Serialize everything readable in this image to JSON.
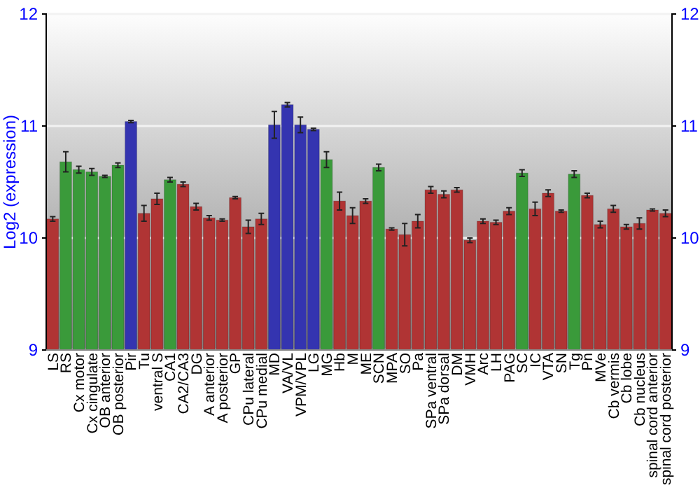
{
  "chart_data": {
    "type": "bar",
    "ylabel": "Log2 (expression)",
    "categories": [
      "LS",
      "RS",
      "Cx motor",
      "Cx cingulate",
      "OB anterior",
      "OB posterior",
      "Pir",
      "Tu",
      "ventral S",
      "CA1",
      "CA2/CA3",
      "DG",
      "A anterior",
      "A posterior",
      "GP",
      "CPu lateral",
      "CPu medial",
      "MD",
      "VA/VL",
      "VPM/VPL",
      "LG",
      "MG",
      "Hb",
      "M",
      "ME",
      "SCN",
      "MPA",
      "SO",
      "Pa",
      "SPa ventral",
      "SPa dorsal",
      "DM",
      "VMH",
      "Arc",
      "LH",
      "PAG",
      "SC",
      "IC",
      "VTA",
      "SN",
      "Tg",
      "Pn",
      "MVe",
      "Cb vermis",
      "Cb lobe",
      "Cb nucleus",
      "spinal cord anterior",
      "spinal cord posterior"
    ],
    "values": [
      10.17,
      10.68,
      10.61,
      10.59,
      10.55,
      10.65,
      11.04,
      10.22,
      10.35,
      10.52,
      10.48,
      10.28,
      10.18,
      10.16,
      10.36,
      10.1,
      10.17,
      11.01,
      11.19,
      11.01,
      10.97,
      10.7,
      10.33,
      10.2,
      10.33,
      10.63,
      10.08,
      10.03,
      10.15,
      10.43,
      10.39,
      10.43,
      9.98,
      10.15,
      10.14,
      10.24,
      10.58,
      10.26,
      10.4,
      10.24,
      10.57,
      10.38,
      10.12,
      10.26,
      10.1,
      10.13,
      10.25,
      10.22
    ],
    "errors": [
      0.02,
      0.09,
      0.03,
      0.03,
      0.01,
      0.02,
      0.01,
      0.07,
      0.05,
      0.02,
      0.02,
      0.03,
      0.02,
      0.01,
      0.01,
      0.06,
      0.05,
      0.12,
      0.02,
      0.07,
      0.01,
      0.07,
      0.08,
      0.07,
      0.02,
      0.03,
      0.01,
      0.1,
      0.06,
      0.03,
      0.03,
      0.02,
      0.02,
      0.02,
      0.02,
      0.03,
      0.03,
      0.06,
      0.03,
      0.01,
      0.03,
      0.02,
      0.03,
      0.03,
      0.02,
      0.05,
      0.01,
      0.03
    ],
    "colors": [
      "#b03434",
      "#3a9a3a",
      "#3a9a3a",
      "#3a9a3a",
      "#3a9a3a",
      "#3a9a3a",
      "#3434b0",
      "#b03434",
      "#b03434",
      "#3a9a3a",
      "#b03434",
      "#b03434",
      "#b03434",
      "#b03434",
      "#b03434",
      "#b03434",
      "#b03434",
      "#3434b0",
      "#3434b0",
      "#3434b0",
      "#3434b0",
      "#3a9a3a",
      "#b03434",
      "#b03434",
      "#b03434",
      "#3a9a3a",
      "#b03434",
      "#b03434",
      "#b03434",
      "#b03434",
      "#b03434",
      "#b03434",
      "#b03434",
      "#b03434",
      "#b03434",
      "#b03434",
      "#3a9a3a",
      "#b03434",
      "#b03434",
      "#b03434",
      "#3a9a3a",
      "#b03434",
      "#b03434",
      "#b03434",
      "#b03434",
      "#b03434",
      "#b03434",
      "#b03434"
    ],
    "ylim": [
      9,
      12
    ],
    "yticks": [
      9,
      10,
      11,
      12
    ],
    "y2lim": [
      9,
      12
    ],
    "y2ticks": [
      9,
      10,
      11,
      12
    ],
    "grid": "y"
  }
}
